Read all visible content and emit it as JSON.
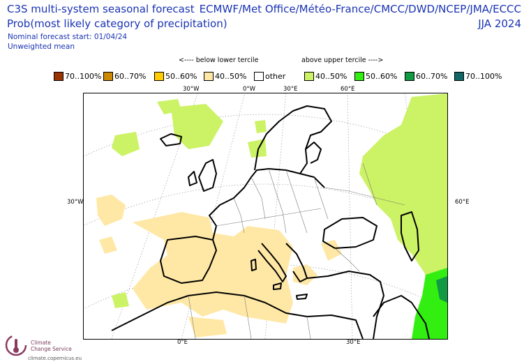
{
  "header": {
    "title": "C3S multi-system seasonal forecast",
    "subtitle": "Prob(most likely category of precipitation)",
    "start_note": "Nominal forecast start: 01/04/24",
    "weight_note": "Unweighted mean",
    "centres": "ECMWF/Met Office/Météo-France/CMCC/DWD/NCEP/JMA/ECCC",
    "season": "JJA 2024"
  },
  "legend": {
    "below_label": "<---- below lower tercile",
    "above_label": "above upper tercile ---->",
    "items": [
      {
        "label": "70..100%",
        "color": "#993300"
      },
      {
        "label": "60..70%",
        "color": "#cc8800"
      },
      {
        "label": "50..60%",
        "color": "#ffcc00"
      },
      {
        "label": "40..50%",
        "color": "#ffe8a6"
      },
      {
        "label": "other",
        "color": "#ffffff"
      },
      {
        "label": "40..50%",
        "color": "#ccf266"
      },
      {
        "label": "50..60%",
        "color": "#33ee11"
      },
      {
        "label": "60..70%",
        "color": "#119944"
      },
      {
        "label": "70..100%",
        "color": "#116666"
      }
    ]
  },
  "map": {
    "top_labels": [
      "30°W",
      "0°W",
      "30°E",
      "60°E"
    ],
    "bottom_labels": [
      "0°E",
      "30°E"
    ],
    "left_label": "30°W",
    "right_label": "60°E"
  },
  "branding": {
    "name_line1": "Climate",
    "name_line2": "Change Service",
    "url": "climate.copernicus.eu",
    "logo_icon": "thermometer-globe-icon"
  }
}
